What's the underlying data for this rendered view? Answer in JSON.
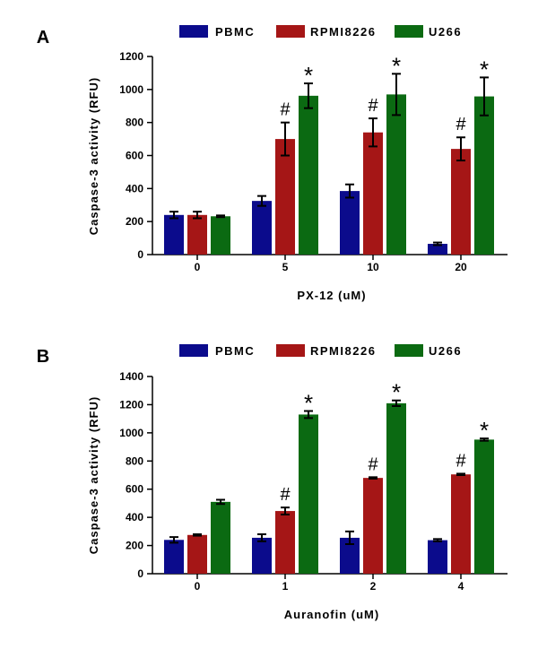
{
  "chart_data": [
    {
      "type": "bar",
      "panel": "A",
      "categories": [
        "0",
        "5",
        "10",
        "20"
      ],
      "xlabel": "PX-12 (uM)",
      "ylabel": "Caspase-3 activity (RFU)",
      "ylim": [
        0,
        1200
      ],
      "yticks": [
        0,
        200,
        400,
        600,
        800,
        1000,
        1200
      ],
      "legend_position": "top",
      "series": [
        {
          "name": "PBMC",
          "color": "#0b0b8c",
          "values": [
            240,
            325,
            385,
            65
          ],
          "errors": [
            20,
            30,
            40,
            8
          ],
          "markers": [
            "",
            "",
            "",
            ""
          ]
        },
        {
          "name": "RPMI8226",
          "color": "#a51616",
          "values": [
            240,
            700,
            740,
            640
          ],
          "errors": [
            20,
            100,
            85,
            70
          ],
          "markers": [
            "",
            "#",
            "#",
            "#"
          ]
        },
        {
          "name": "U266",
          "color": "#0b6a12",
          "values": [
            232,
            962,
            970,
            958
          ],
          "errors": [
            5,
            75,
            125,
            115
          ],
          "markers": [
            "",
            "*",
            "*",
            "*"
          ]
        }
      ]
    },
    {
      "type": "bar",
      "panel": "B",
      "categories": [
        "0",
        "1",
        "2",
        "4"
      ],
      "xlabel": "Auranofin (uM)",
      "ylabel": "Caspase-3 activity (RFU)",
      "ylim": [
        0,
        1400
      ],
      "yticks": [
        0,
        200,
        400,
        600,
        800,
        1000,
        1200,
        1400
      ],
      "legend_position": "top",
      "series": [
        {
          "name": "PBMC",
          "color": "#0b0b8c",
          "values": [
            240,
            255,
            255,
            238
          ],
          "errors": [
            20,
            25,
            45,
            8
          ],
          "markers": [
            "",
            "",
            "",
            ""
          ]
        },
        {
          "name": "RPMI8226",
          "color": "#a51616",
          "values": [
            275,
            445,
            680,
            705
          ],
          "errors": [
            5,
            25,
            5,
            5
          ],
          "markers": [
            "",
            "#",
            "#",
            "#"
          ]
        },
        {
          "name": "U266",
          "color": "#0b6a12",
          "values": [
            510,
            1130,
            1210,
            952
          ],
          "errors": [
            15,
            25,
            20,
            8
          ],
          "markers": [
            "",
            "*",
            "*",
            "*"
          ]
        }
      ]
    }
  ]
}
